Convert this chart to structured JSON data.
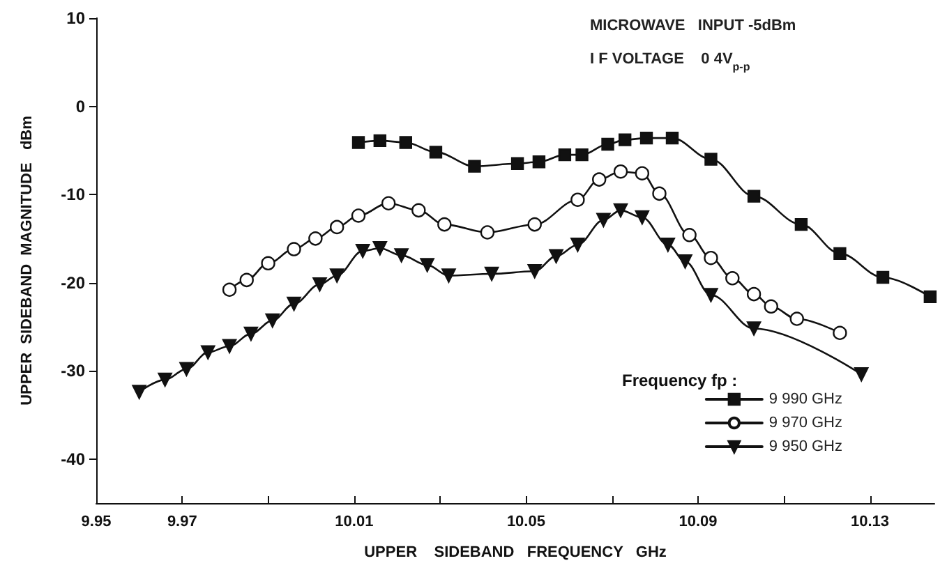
{
  "chart_data": {
    "type": "line",
    "xlabel": "UPPER    SIDEBAND   FREQUENCY   GHz",
    "ylabel": "UPPER  SIDEBAND  MAGNITUDE   dBm",
    "legend_title": "Frequency fp :",
    "annotations": [
      "MICROWAVE   INPUT -5dBm",
      "I F VOLTAGE    0 4V$_{p-p}$"
    ],
    "xlim": [
      9.95,
      10.145
    ],
    "xticks": [
      9.95,
      9.97,
      {
        "value": 9.99,
        "label": null
      },
      10.01,
      {
        "value": 10.03,
        "label": null
      },
      10.05,
      {
        "value": 10.07,
        "label": null
      },
      10.09,
      {
        "value": 10.11,
        "label": null
      },
      10.13
    ],
    "ylim": [
      -45,
      10
    ],
    "yticks": [
      10,
      0,
      -10,
      -20,
      -30,
      -40
    ],
    "grid": false,
    "legend": "bottom right",
    "line_style": "solid",
    "series": [
      {
        "name": "9 990 GHz",
        "color": "#111111",
        "marker": "square",
        "x": [
          10.011,
          10.016,
          10.022,
          10.029,
          10.038,
          10.048,
          10.053,
          10.059,
          10.063,
          10.069,
          10.073,
          10.078,
          10.084,
          10.093,
          10.103,
          10.114,
          10.123,
          10.133,
          10.144
        ],
        "values": [
          -4.1,
          -3.9,
          -4.1,
          -5.2,
          -6.8,
          -6.5,
          -6.3,
          -5.5,
          -5.5,
          -4.3,
          -3.8,
          -3.6,
          -3.6,
          -6.0,
          -10.2,
          -13.4,
          -16.7,
          -19.4,
          -21.6
        ]
      },
      {
        "name": "9 970 GHz",
        "color": "#111111",
        "marker": "circle",
        "x": [
          9.981,
          9.985,
          9.99,
          9.996,
          10.001,
          10.006,
          10.011,
          10.018,
          10.025,
          10.031,
          10.041,
          10.052,
          10.062,
          10.067,
          10.072,
          10.077,
          10.081,
          10.088,
          10.093,
          10.098,
          10.103,
          10.107,
          10.113,
          10.123
        ],
        "values": [
          -20.8,
          -19.7,
          -17.8,
          -16.2,
          -15.0,
          -13.7,
          -12.4,
          -11.0,
          -11.8,
          -13.4,
          -14.3,
          -13.4,
          -10.6,
          -8.3,
          -7.4,
          -7.6,
          -9.9,
          -14.6,
          -17.2,
          -19.5,
          -21.3,
          -22.7,
          -24.1,
          -25.7
        ]
      },
      {
        "name": "9 950 GHz",
        "color": "#111111",
        "marker": "triangle",
        "x": [
          9.96,
          9.966,
          9.971,
          9.976,
          9.981,
          9.986,
          9.991,
          9.996,
          10.002,
          10.006,
          10.012,
          10.016,
          10.021,
          10.027,
          10.032,
          10.042,
          10.052,
          10.057,
          10.062,
          10.068,
          10.072,
          10.077,
          10.083,
          10.087,
          10.093,
          10.103,
          10.128
        ],
        "values": [
          -32.4,
          -31.0,
          -29.8,
          -27.9,
          -27.2,
          -25.8,
          -24.3,
          -22.4,
          -20.2,
          -19.2,
          -16.4,
          -16.1,
          -16.9,
          -18.0,
          -19.2,
          -19.0,
          -18.7,
          -17.0,
          -15.7,
          -12.9,
          -11.8,
          -12.6,
          -15.7,
          -17.6,
          -21.4,
          -25.2,
          -30.4
        ]
      }
    ]
  }
}
